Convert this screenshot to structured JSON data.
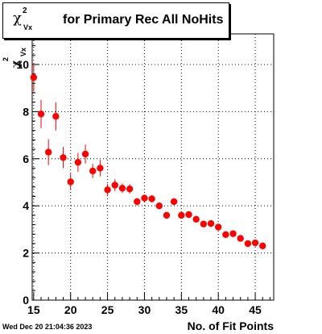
{
  "title": {
    "symbol": "χ",
    "superscript": "2",
    "subscript": "Vx",
    "text": "for Primary Rec All NoHits"
  },
  "ylabel": {
    "symbol": "χ",
    "superscript": "2",
    "subscript": "Vx"
  },
  "datestamp": "Wed Dec 20 21:04:36 2023",
  "chart_data": {
    "type": "scatter",
    "title": "χ²_Vx for Primary Rec All NoHits",
    "xlabel": "No. of Fit Points",
    "ylabel": "χ²_Vx",
    "xlim": [
      14.8,
      47.5
    ],
    "ylim": [
      0,
      11.3
    ],
    "x_ticks": [
      15,
      20,
      25,
      30,
      35,
      40,
      45
    ],
    "y_ticks": [
      0,
      2,
      4,
      6,
      8,
      10
    ],
    "grid": true,
    "marker_color": "#ff0000",
    "points": [
      {
        "x": 15,
        "y": 9.45,
        "err": 0.6
      },
      {
        "x": 16,
        "y": 7.9,
        "err": 0.6
      },
      {
        "x": 17,
        "y": 6.28,
        "err": 0.55
      },
      {
        "x": 18,
        "y": 7.8,
        "err": 0.6
      },
      {
        "x": 19,
        "y": 6.05,
        "err": 0.45
      },
      {
        "x": 20,
        "y": 5.02,
        "err": 0.35
      },
      {
        "x": 21,
        "y": 5.85,
        "err": 0.4
      },
      {
        "x": 22,
        "y": 6.2,
        "err": 0.4
      },
      {
        "x": 23,
        "y": 5.48,
        "err": 0.3
      },
      {
        "x": 24,
        "y": 5.6,
        "err": 0.35
      },
      {
        "x": 25,
        "y": 4.68,
        "err": 0.25
      },
      {
        "x": 26,
        "y": 4.88,
        "err": 0.25
      },
      {
        "x": 27,
        "y": 4.75,
        "err": 0.2
      },
      {
        "x": 28,
        "y": 4.72,
        "err": 0.2
      },
      {
        "x": 29,
        "y": 4.18,
        "err": 0.15
      },
      {
        "x": 30,
        "y": 4.33,
        "err": 0.15
      },
      {
        "x": 31,
        "y": 4.3,
        "err": 0.15
      },
      {
        "x": 32,
        "y": 4.0,
        "err": 0.12
      },
      {
        "x": 33,
        "y": 3.6,
        "err": 0.1
      },
      {
        "x": 34,
        "y": 4.18,
        "err": 0.12
      },
      {
        "x": 35,
        "y": 3.6,
        "err": 0.1
      },
      {
        "x": 36,
        "y": 3.63,
        "err": 0.1
      },
      {
        "x": 37,
        "y": 3.43,
        "err": 0.08
      },
      {
        "x": 38,
        "y": 3.23,
        "err": 0.08
      },
      {
        "x": 39,
        "y": 3.25,
        "err": 0.08
      },
      {
        "x": 40,
        "y": 3.1,
        "err": 0.08
      },
      {
        "x": 41,
        "y": 2.78,
        "err": 0.07
      },
      {
        "x": 42,
        "y": 2.82,
        "err": 0.07
      },
      {
        "x": 43,
        "y": 2.62,
        "err": 0.07
      },
      {
        "x": 44,
        "y": 2.4,
        "err": 0.06
      },
      {
        "x": 45,
        "y": 2.43,
        "err": 0.06
      },
      {
        "x": 46,
        "y": 2.3,
        "err": 0.06
      }
    ]
  }
}
